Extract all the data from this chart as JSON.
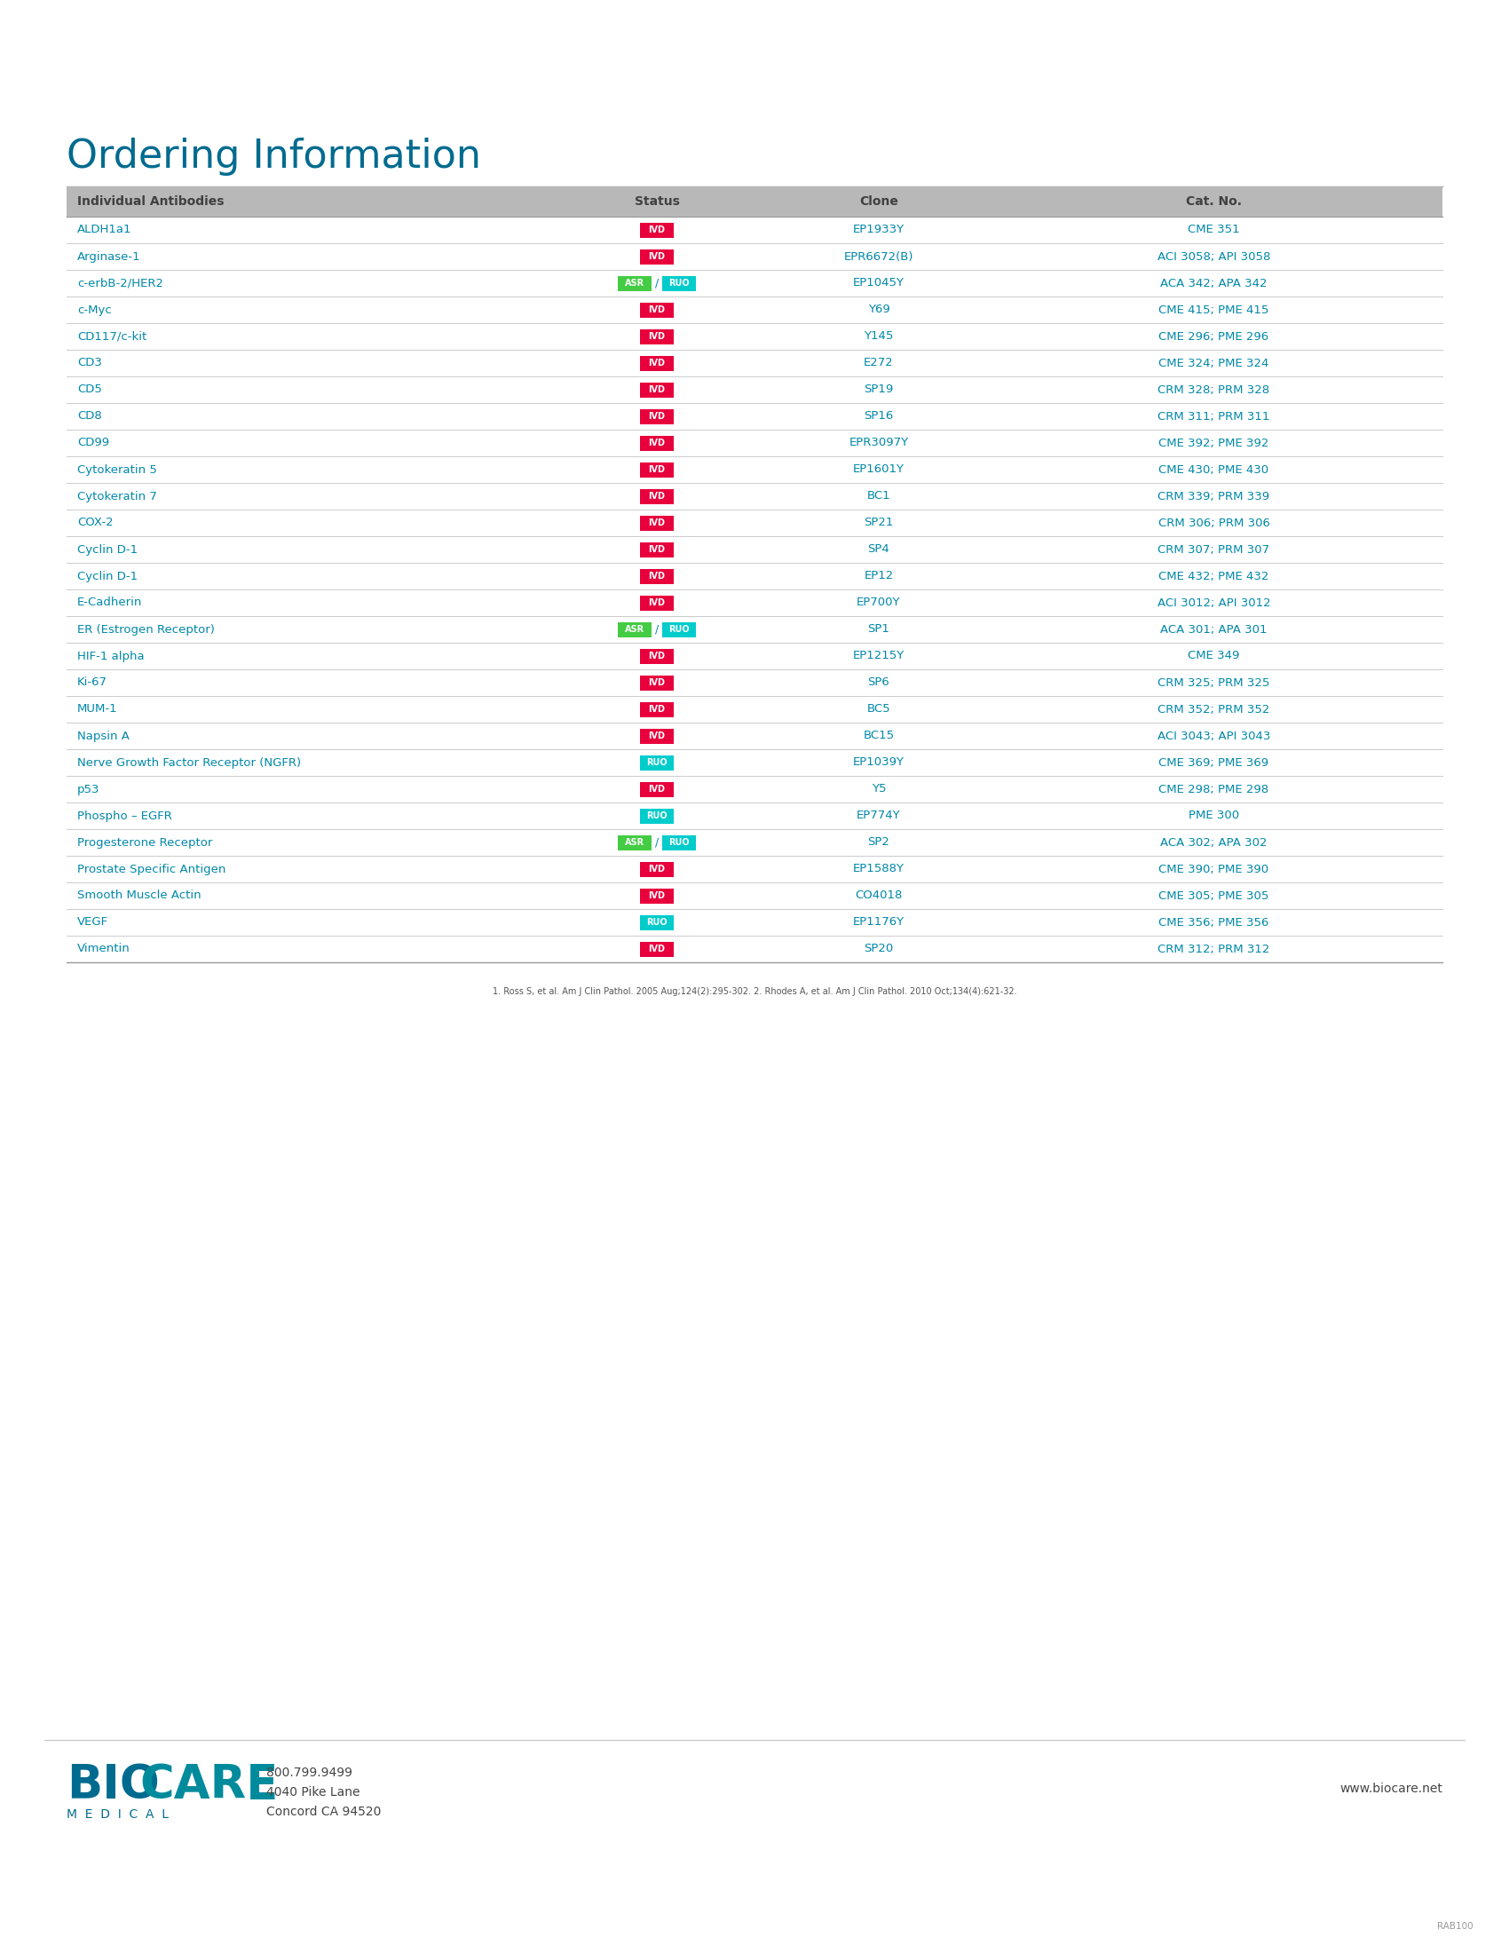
{
  "title": "Ordering Information",
  "title_color": "#006b8f",
  "header": [
    "Individual Antibodies",
    "Status",
    "Clone",
    "Cat. No."
  ],
  "header_bg": "#b8b8b8",
  "header_text_color": "#404040",
  "rows": [
    {
      "name": "ALDH1a1",
      "status": [
        {
          "label": "IVD",
          "color": "#e8003d",
          "text": "white"
        }
      ],
      "clone": "EP1933Y",
      "cat": "CME 351"
    },
    {
      "name": "Arginase-1",
      "status": [
        {
          "label": "IVD",
          "color": "#e8003d",
          "text": "white"
        }
      ],
      "clone": "EPR6672(B)",
      "cat": "ACI 3058; API 3058"
    },
    {
      "name": "c-erbB-2/HER2",
      "status": [
        {
          "label": "ASR",
          "color": "#44cc44",
          "text": "white"
        },
        {
          "label": "RUO",
          "color": "#00cccc",
          "text": "white"
        }
      ],
      "clone": "EP1045Y",
      "cat": "ACA 342; APA 342"
    },
    {
      "name": "c-Myc",
      "status": [
        {
          "label": "IVD",
          "color": "#e8003d",
          "text": "white"
        }
      ],
      "clone": "Y69",
      "cat": "CME 415; PME 415"
    },
    {
      "name": "CD117/c-kit",
      "status": [
        {
          "label": "IVD",
          "color": "#e8003d",
          "text": "white"
        }
      ],
      "clone": "Y145",
      "cat": "CME 296; PME 296"
    },
    {
      "name": "CD3",
      "status": [
        {
          "label": "IVD",
          "color": "#e8003d",
          "text": "white"
        }
      ],
      "clone": "E272",
      "cat": "CME 324; PME 324"
    },
    {
      "name": "CD5",
      "status": [
        {
          "label": "IVD",
          "color": "#e8003d",
          "text": "white"
        }
      ],
      "clone": "SP19",
      "cat": "CRM 328; PRM 328"
    },
    {
      "name": "CD8",
      "status": [
        {
          "label": "IVD",
          "color": "#e8003d",
          "text": "white"
        }
      ],
      "clone": "SP16",
      "cat": "CRM 311; PRM 311"
    },
    {
      "name": "CD99",
      "status": [
        {
          "label": "IVD",
          "color": "#e8003d",
          "text": "white"
        }
      ],
      "clone": "EPR3097Y",
      "cat": "CME 392; PME 392"
    },
    {
      "name": "Cytokeratin 5",
      "status": [
        {
          "label": "IVD",
          "color": "#e8003d",
          "text": "white"
        }
      ],
      "clone": "EP1601Y",
      "cat": "CME 430; PME 430"
    },
    {
      "name": "Cytokeratin 7",
      "status": [
        {
          "label": "IVD",
          "color": "#e8003d",
          "text": "white"
        }
      ],
      "clone": "BC1",
      "cat": "CRM 339; PRM 339"
    },
    {
      "name": "COX-2",
      "status": [
        {
          "label": "IVD",
          "color": "#e8003d",
          "text": "white"
        }
      ],
      "clone": "SP21",
      "cat": "CRM 306; PRM 306"
    },
    {
      "name": "Cyclin D-1",
      "status": [
        {
          "label": "IVD",
          "color": "#e8003d",
          "text": "white"
        }
      ],
      "clone": "SP4",
      "cat": "CRM 307; PRM 307"
    },
    {
      "name": "Cyclin D-1",
      "status": [
        {
          "label": "IVD",
          "color": "#e8003d",
          "text": "white"
        }
      ],
      "clone": "EP12",
      "cat": "CME 432; PME 432"
    },
    {
      "name": "E-Cadherin",
      "status": [
        {
          "label": "IVD",
          "color": "#e8003d",
          "text": "white"
        }
      ],
      "clone": "EP700Y",
      "cat": "ACI 3012; API 3012"
    },
    {
      "name": "ER (Estrogen Receptor)",
      "status": [
        {
          "label": "ASR",
          "color": "#44cc44",
          "text": "white"
        },
        {
          "label": "RUO",
          "color": "#00cccc",
          "text": "white"
        }
      ],
      "clone": "SP1",
      "cat": "ACA 301; APA 301"
    },
    {
      "name": "HIF-1 alpha",
      "status": [
        {
          "label": "IVD",
          "color": "#e8003d",
          "text": "white"
        }
      ],
      "clone": "EP1215Y",
      "cat": "CME 349"
    },
    {
      "name": "Ki-67",
      "status": [
        {
          "label": "IVD",
          "color": "#e8003d",
          "text": "white"
        }
      ],
      "clone": "SP6",
      "cat": "CRM 325; PRM 325"
    },
    {
      "name": "MUM-1",
      "status": [
        {
          "label": "IVD",
          "color": "#e8003d",
          "text": "white"
        }
      ],
      "clone": "BC5",
      "cat": "CRM 352; PRM 352"
    },
    {
      "name": "Napsin A",
      "status": [
        {
          "label": "IVD",
          "color": "#e8003d",
          "text": "white"
        }
      ],
      "clone": "BC15",
      "cat": "ACI 3043; API 3043"
    },
    {
      "name": "Nerve Growth Factor Receptor (NGFR)",
      "status": [
        {
          "label": "RUO",
          "color": "#00cccc",
          "text": "white"
        }
      ],
      "clone": "EP1039Y",
      "cat": "CME 369; PME 369"
    },
    {
      "name": "p53",
      "status": [
        {
          "label": "IVD",
          "color": "#e8003d",
          "text": "white"
        }
      ],
      "clone": "Y5",
      "cat": "CME 298; PME 298"
    },
    {
      "name": "Phospho – EGFR",
      "status": [
        {
          "label": "RUO",
          "color": "#00cccc",
          "text": "white"
        }
      ],
      "clone": "EP774Y",
      "cat": "PME 300"
    },
    {
      "name": "Progesterone Receptor",
      "status": [
        {
          "label": "ASR",
          "color": "#44cc44",
          "text": "white"
        },
        {
          "label": "RUO",
          "color": "#00cccc",
          "text": "white"
        }
      ],
      "clone": "SP2",
      "cat": "ACA 302; APA 302"
    },
    {
      "name": "Prostate Specific Antigen",
      "status": [
        {
          "label": "IVD",
          "color": "#e8003d",
          "text": "white"
        }
      ],
      "clone": "EP1588Y",
      "cat": "CME 390; PME 390"
    },
    {
      "name": "Smooth Muscle Actin",
      "status": [
        {
          "label": "IVD",
          "color": "#e8003d",
          "text": "white"
        }
      ],
      "clone": "CO4018",
      "cat": "CME 305; PME 305"
    },
    {
      "name": "VEGF",
      "status": [
        {
          "label": "RUO",
          "color": "#00cccc",
          "text": "white"
        }
      ],
      "clone": "EP1176Y",
      "cat": "CME 356; PME 356"
    },
    {
      "name": "Vimentin",
      "status": [
        {
          "label": "IVD",
          "color": "#e8003d",
          "text": "white"
        }
      ],
      "clone": "SP20",
      "cat": "CRM 312; PRM 312"
    }
  ],
  "footnote": "1. Ross S, et al. Am J Clin Pathol. 2005 Aug;124(2):295-302. 2. Rhodes A, et al. Am J Clin Pathol. 2010 Oct;134(4):621-32.",
  "contact_line1": "800.799.9499",
  "contact_line2": "4040 Pike Lane",
  "contact_line3": "Concord CA 94520",
  "website": "www.biocare.net",
  "page_code": "RAB100",
  "bg_color": "#ffffff",
  "title_color_hex": "#006b8f",
  "row_text_color": "#0088a9",
  "separator_color": "#cccccc"
}
